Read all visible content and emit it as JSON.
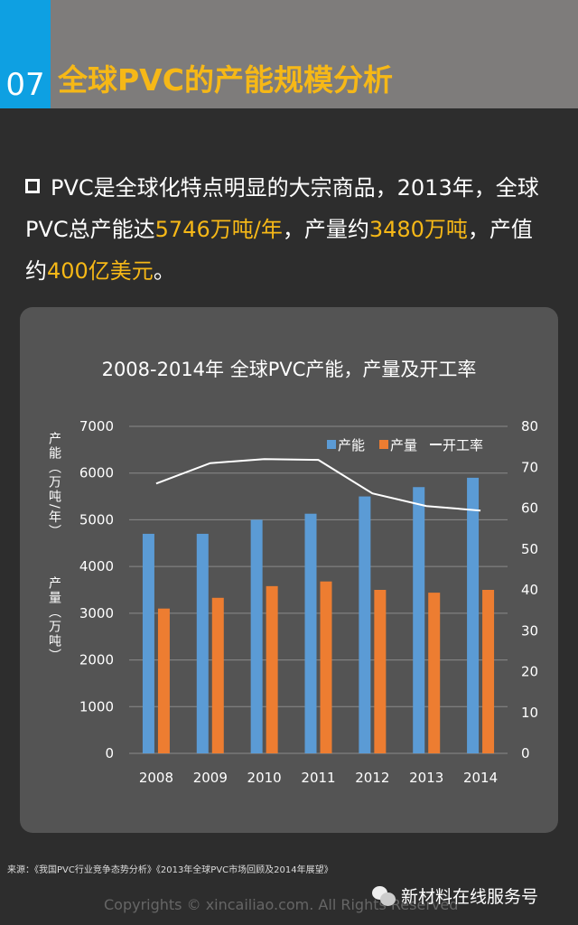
{
  "header": {
    "number": "07",
    "title": "全球PVC的产能规模分析"
  },
  "bullet": {
    "p1": "PVC是全球化特点明显的大宗商品，2013年，全球PVC总产能达",
    "v1": "5746万吨/年",
    "p2": "，产量约",
    "v2": "3480万吨",
    "p3": "，产值约",
    "v3": "400亿美元",
    "p4": "。"
  },
  "chart_data": {
    "type": "bar",
    "title": "2008-2014年 全球PVC产能，产量及开工率",
    "categories": [
      "2008",
      "2009",
      "2010",
      "2011",
      "2012",
      "2013",
      "2014"
    ],
    "series": [
      {
        "name": "产能",
        "type": "bar",
        "axis": "left",
        "color": "#5b9bd5",
        "values": [
          4700,
          4700,
          5000,
          5130,
          5500,
          5700,
          5900
        ]
      },
      {
        "name": "产量",
        "type": "bar",
        "axis": "left",
        "color": "#ed7d31",
        "values": [
          3100,
          3330,
          3580,
          3680,
          3500,
          3440,
          3500
        ]
      },
      {
        "name": "开工率",
        "type": "line",
        "axis": "right",
        "color": "#ffffff",
        "values": [
          66,
          71,
          72,
          71.8,
          63.6,
          60.5,
          59.4
        ]
      }
    ],
    "ylim": [
      0,
      7000
    ],
    "yticks": [
      0,
      1000,
      2000,
      3000,
      4000,
      5000,
      6000,
      7000
    ],
    "y2lim": [
      0,
      80
    ],
    "y2ticks": [
      0,
      10,
      20,
      30,
      40,
      50,
      60,
      70,
      80
    ],
    "ylabel_top": "产能（万吨/年）",
    "ylabel_bottom": "产量（万吨）",
    "legend_position": "top-right",
    "grid": true
  },
  "footer": {
    "source": "来源：《我国PVC行业竞争态势分析》《2013年全球PVC市场回顾及2014年展望》",
    "copyright": "Copyrights © xincailiao.com. All Rights Reserved",
    "wechat": "新材料在线服务号"
  }
}
